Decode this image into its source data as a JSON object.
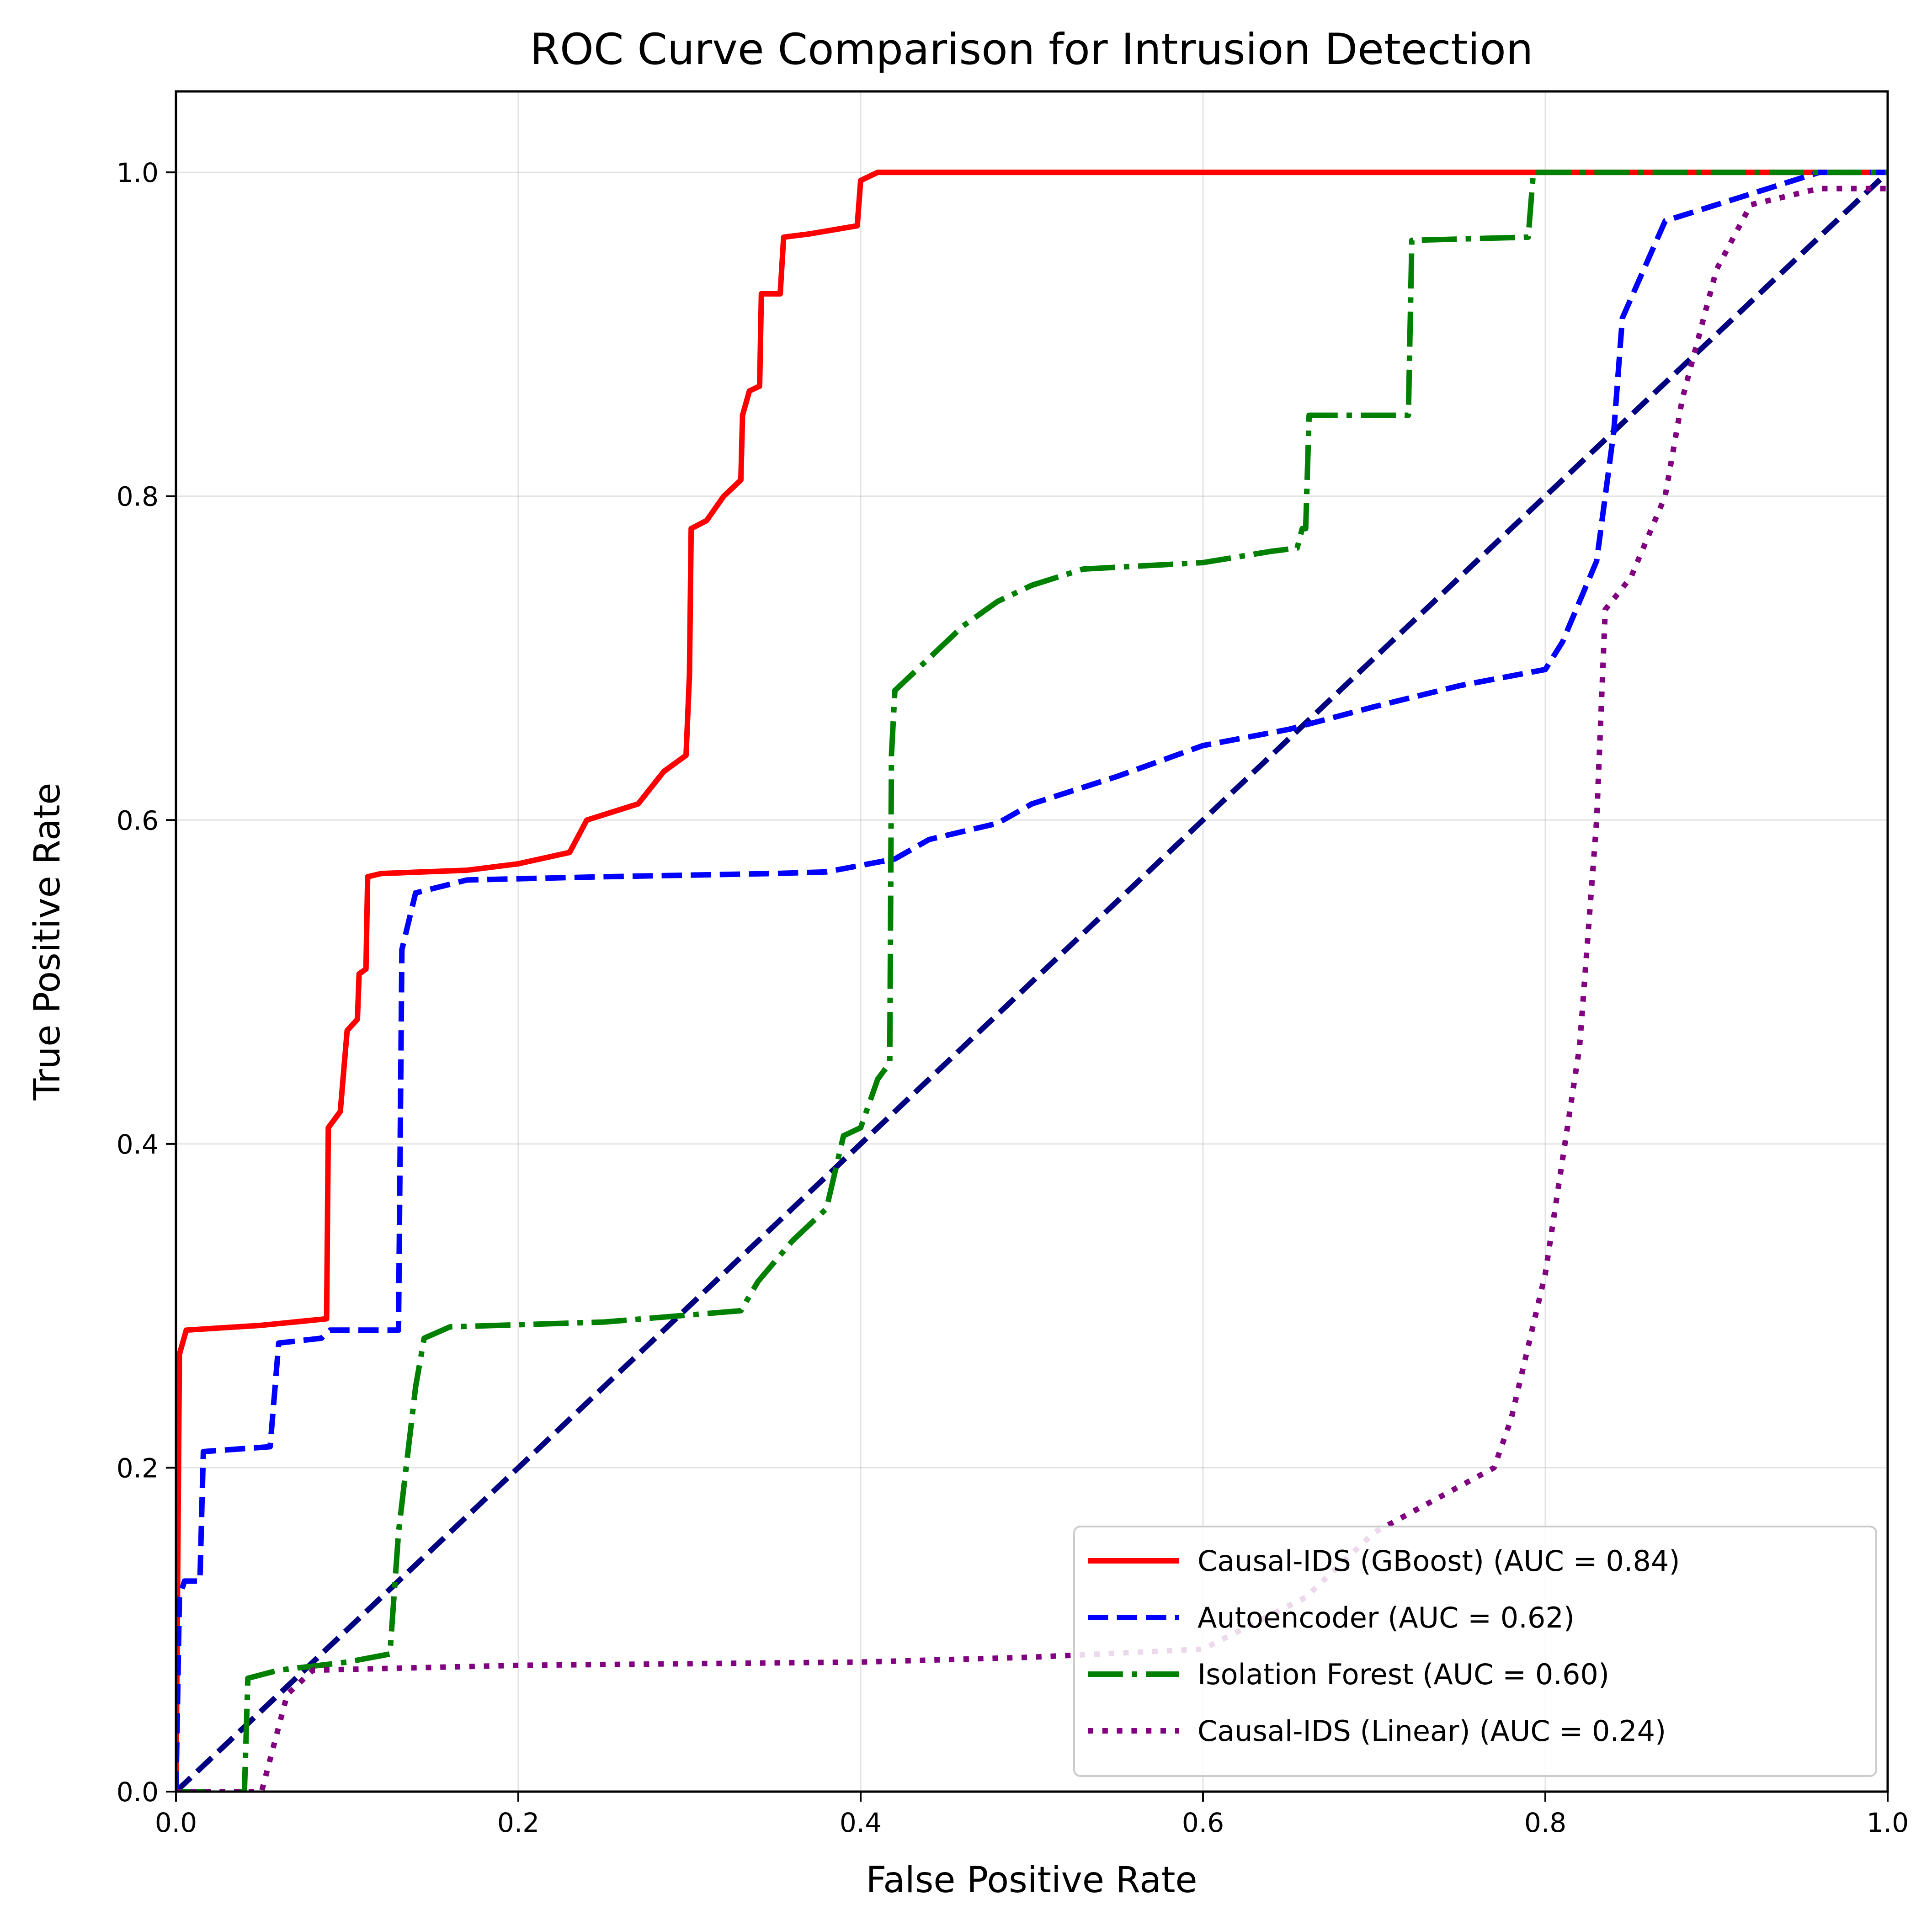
{
  "chart_data": {
    "type": "line",
    "title": "ROC Curve Comparison for Intrusion Detection",
    "xlabel": "False Positive Rate",
    "ylabel": "True Positive Rate",
    "xlim": [
      0.0,
      1.0
    ],
    "ylim": [
      0.0,
      1.05
    ],
    "xticks": [
      "0.0",
      "0.2",
      "0.4",
      "0.6",
      "0.8",
      "1.0"
    ],
    "yticks": [
      "0.0",
      "0.2",
      "0.4",
      "0.6",
      "0.8",
      "1.0"
    ],
    "grid": true,
    "legend_position": "lower-right",
    "series": [
      {
        "name": "Causal-IDS (GBoost) (AUC = 0.84)",
        "color": "#ff0000",
        "style": "solid",
        "points": [
          [
            0,
            0
          ],
          [
            0.002,
            0.27
          ],
          [
            0.006,
            0.285
          ],
          [
            0.05,
            0.288
          ],
          [
            0.088,
            0.292
          ],
          [
            0.089,
            0.41
          ],
          [
            0.096,
            0.42
          ],
          [
            0.1,
            0.47
          ],
          [
            0.106,
            0.477
          ],
          [
            0.107,
            0.505
          ],
          [
            0.111,
            0.508
          ],
          [
            0.112,
            0.565
          ],
          [
            0.12,
            0.567
          ],
          [
            0.17,
            0.569
          ],
          [
            0.2,
            0.573
          ],
          [
            0.23,
            0.58
          ],
          [
            0.24,
            0.6
          ],
          [
            0.27,
            0.61
          ],
          [
            0.285,
            0.63
          ],
          [
            0.298,
            0.64
          ],
          [
            0.3,
            0.69
          ],
          [
            0.301,
            0.78
          ],
          [
            0.31,
            0.785
          ],
          [
            0.32,
            0.8
          ],
          [
            0.33,
            0.81
          ],
          [
            0.331,
            0.85
          ],
          [
            0.335,
            0.865
          ],
          [
            0.341,
            0.868
          ],
          [
            0.342,
            0.925
          ],
          [
            0.353,
            0.925
          ],
          [
            0.355,
            0.96
          ],
          [
            0.37,
            0.962
          ],
          [
            0.398,
            0.967
          ],
          [
            0.4,
            0.995
          ],
          [
            0.41,
            1.0
          ],
          [
            1.0,
            1.0
          ]
        ]
      },
      {
        "name": "Autoencoder (AUC = 0.62)",
        "color": "#0000ff",
        "style": "dashed",
        "points": [
          [
            0,
            0
          ],
          [
            0.002,
            0.12
          ],
          [
            0.005,
            0.13
          ],
          [
            0.014,
            0.13
          ],
          [
            0.016,
            0.21
          ],
          [
            0.055,
            0.213
          ],
          [
            0.06,
            0.277
          ],
          [
            0.085,
            0.28
          ],
          [
            0.09,
            0.285
          ],
          [
            0.13,
            0.285
          ],
          [
            0.132,
            0.52
          ],
          [
            0.14,
            0.555
          ],
          [
            0.17,
            0.563
          ],
          [
            0.25,
            0.565
          ],
          [
            0.35,
            0.567
          ],
          [
            0.38,
            0.568
          ],
          [
            0.42,
            0.576
          ],
          [
            0.44,
            0.588
          ],
          [
            0.48,
            0.598
          ],
          [
            0.5,
            0.61
          ],
          [
            0.55,
            0.627
          ],
          [
            0.6,
            0.646
          ],
          [
            0.65,
            0.656
          ],
          [
            0.7,
            0.67
          ],
          [
            0.75,
            0.683
          ],
          [
            0.8,
            0.693
          ],
          [
            0.81,
            0.71
          ],
          [
            0.83,
            0.76
          ],
          [
            0.84,
            0.84
          ],
          [
            0.845,
            0.91
          ],
          [
            0.87,
            0.97
          ],
          [
            0.9,
            0.98
          ],
          [
            0.93,
            0.99
          ],
          [
            0.96,
            1.0
          ],
          [
            1.0,
            1.0
          ]
        ]
      },
      {
        "name": "Isolation Forest (AUC = 0.60)",
        "color": "#008000",
        "style": "dashdot",
        "points": [
          [
            0,
            0
          ],
          [
            0.04,
            0.0
          ],
          [
            0.042,
            0.07
          ],
          [
            0.06,
            0.075
          ],
          [
            0.1,
            0.08
          ],
          [
            0.125,
            0.085
          ],
          [
            0.13,
            0.16
          ],
          [
            0.14,
            0.25
          ],
          [
            0.145,
            0.28
          ],
          [
            0.16,
            0.287
          ],
          [
            0.25,
            0.29
          ],
          [
            0.33,
            0.297
          ],
          [
            0.34,
            0.315
          ],
          [
            0.36,
            0.34
          ],
          [
            0.38,
            0.36
          ],
          [
            0.39,
            0.405
          ],
          [
            0.4,
            0.41
          ],
          [
            0.41,
            0.44
          ],
          [
            0.417,
            0.45
          ],
          [
            0.418,
            0.64
          ],
          [
            0.42,
            0.68
          ],
          [
            0.44,
            0.7
          ],
          [
            0.46,
            0.72
          ],
          [
            0.48,
            0.735
          ],
          [
            0.5,
            0.745
          ],
          [
            0.53,
            0.755
          ],
          [
            0.6,
            0.759
          ],
          [
            0.64,
            0.766
          ],
          [
            0.655,
            0.768
          ],
          [
            0.658,
            0.78
          ],
          [
            0.66,
            0.78
          ],
          [
            0.662,
            0.85
          ],
          [
            0.72,
            0.85
          ],
          [
            0.722,
            0.958
          ],
          [
            0.79,
            0.96
          ],
          [
            0.793,
            1.0
          ],
          [
            1.0,
            1.0
          ]
        ]
      },
      {
        "name": "Causal-IDS (Linear) (AUC = 0.24)",
        "color": "#800080",
        "style": "dotted",
        "points": [
          [
            0,
            0
          ],
          [
            0.05,
            0.0
          ],
          [
            0.065,
            0.06
          ],
          [
            0.08,
            0.075
          ],
          [
            0.2,
            0.078
          ],
          [
            0.4,
            0.08
          ],
          [
            0.5,
            0.083
          ],
          [
            0.6,
            0.088
          ],
          [
            0.66,
            0.12
          ],
          [
            0.7,
            0.16
          ],
          [
            0.77,
            0.2
          ],
          [
            0.78,
            0.23
          ],
          [
            0.8,
            0.32
          ],
          [
            0.82,
            0.46
          ],
          [
            0.83,
            0.6
          ],
          [
            0.835,
            0.73
          ],
          [
            0.85,
            0.75
          ],
          [
            0.87,
            0.8
          ],
          [
            0.88,
            0.86
          ],
          [
            0.9,
            0.94
          ],
          [
            0.92,
            0.98
          ],
          [
            0.96,
            0.99
          ],
          [
            1.0,
            0.99
          ]
        ]
      },
      {
        "name": "",
        "color": "#000080",
        "style": "dashed",
        "points": [
          [
            0,
            0
          ],
          [
            1,
            1
          ]
        ]
      }
    ]
  }
}
